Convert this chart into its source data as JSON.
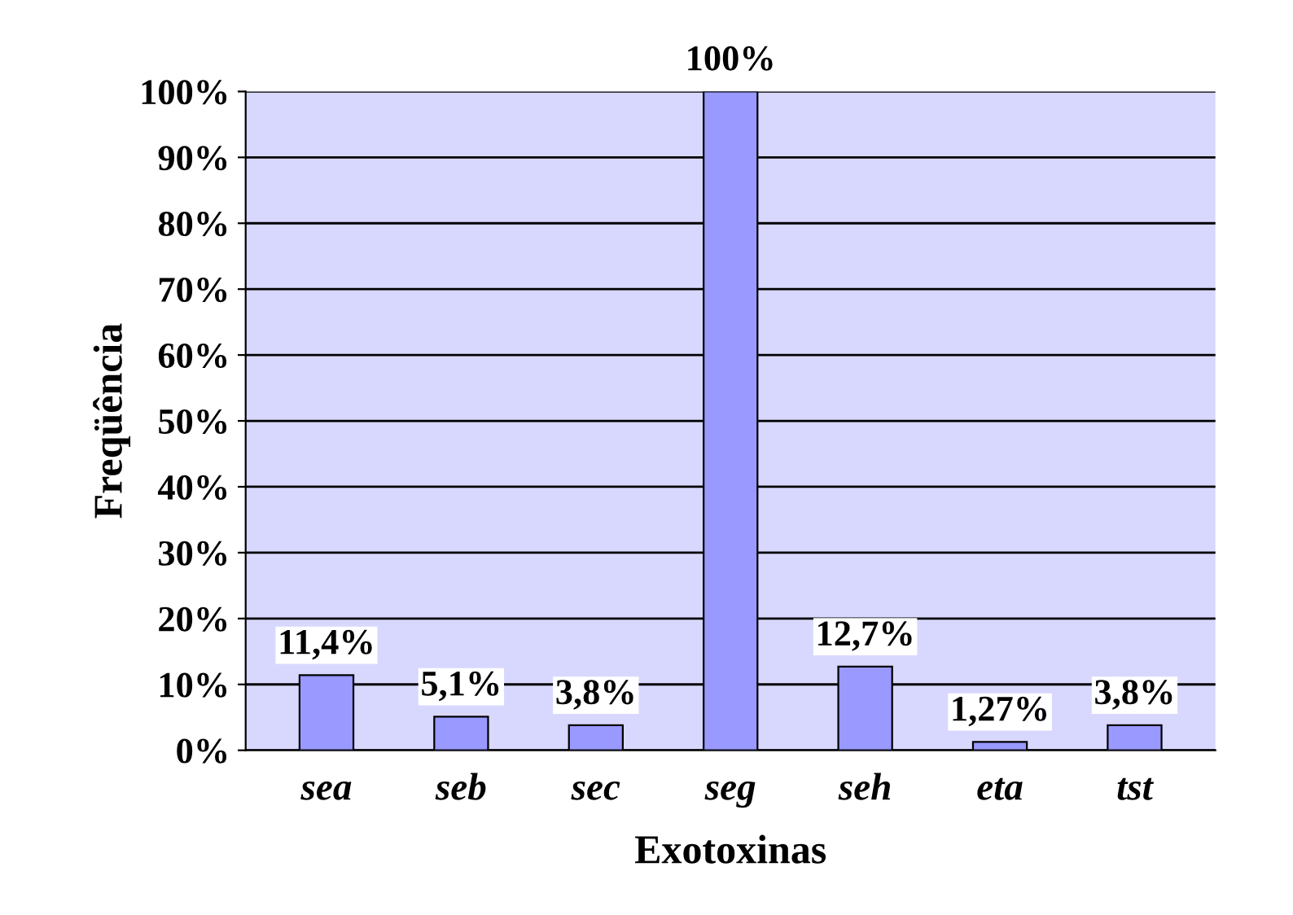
{
  "chart_data": {
    "type": "bar",
    "xlabel": "Exotoxinas",
    "ylabel": "Freqüência",
    "categories": [
      "sea",
      "seb",
      "sec",
      "seg",
      "seh",
      "eta",
      "tst"
    ],
    "values": [
      11.4,
      5.1,
      3.8,
      100,
      12.7,
      1.27,
      3.8
    ],
    "value_labels": [
      "11,4%",
      "5,1%",
      "3,8%",
      "100%",
      "12,7%",
      "1,27%",
      "3,8%"
    ],
    "color": "#9999ff",
    "ylim": [
      0,
      100
    ],
    "yticks": [
      {
        "value": 0,
        "label": "0%"
      },
      {
        "value": 10,
        "label": "10%"
      },
      {
        "value": 20,
        "label": "20%"
      },
      {
        "value": 30,
        "label": "30%"
      },
      {
        "value": 40,
        "label": "40%"
      },
      {
        "value": 50,
        "label": "50%"
      },
      {
        "value": 60,
        "label": "60%"
      },
      {
        "value": 70,
        "label": "70%"
      },
      {
        "value": 80,
        "label": "80%"
      },
      {
        "value": 90,
        "label": "90%"
      },
      {
        "value": 100,
        "label": "100%"
      }
    ],
    "grid": "y"
  }
}
